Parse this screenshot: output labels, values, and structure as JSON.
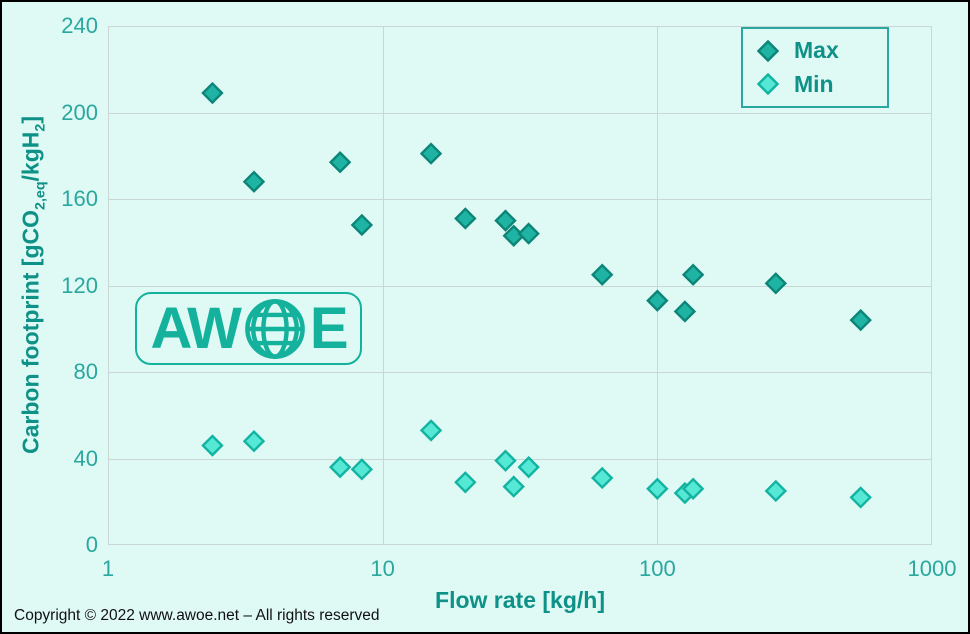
{
  "footer": {
    "copyright": "Copyright © 2022 www.awoe.net – All rights reserved"
  },
  "watermark": {
    "left": "AW",
    "right": "E",
    "icon": "globe-icon"
  },
  "colors": {
    "background": "#dff9f5",
    "gridline": "#c9d6d3",
    "tick_text": "#2aa79e",
    "title_text": "#0e9187",
    "legend_border": "#2aa79e",
    "logo_teal": "#14b29c",
    "max_fill": "#1fb3a4",
    "max_stroke": "#0b8578",
    "min_fill": "#55e8d5",
    "min_stroke": "#13b3a2"
  },
  "chart_data": {
    "type": "scatter",
    "title": "",
    "xlabel": "Flow rate [kg/h]",
    "ylabel_plain": "Carbon footprint [gCO2,eq/kgH2]",
    "ylabel_parts": [
      {
        "text": "Carbon footprint [gCO"
      },
      {
        "sub": "2,eq"
      },
      {
        "text": "/kgH"
      },
      {
        "sub": "2"
      },
      {
        "text": "]"
      }
    ],
    "x_scale": "log",
    "xlim": [
      1,
      1000
    ],
    "ylim": [
      0,
      240
    ],
    "x_ticks": [
      1,
      10,
      100,
      1000
    ],
    "y_ticks": [
      0,
      40,
      80,
      120,
      160,
      200,
      240
    ],
    "grid": true,
    "legend_position": "top-right-inside",
    "marker": "diamond",
    "x": [
      2.4,
      3.4,
      7,
      8.4,
      15,
      20,
      28,
      30,
      34,
      63,
      100,
      126,
      135,
      270,
      550
    ],
    "series": [
      {
        "name": "Max",
        "fill": "#1fb3a4",
        "stroke": "#0b8578",
        "values": [
          209,
          168,
          177,
          148,
          181,
          151,
          150,
          143,
          144,
          125,
          113,
          108,
          125,
          121,
          104
        ]
      },
      {
        "name": "Min",
        "fill": "#55e8d5",
        "stroke": "#13b3a2",
        "values": [
          46,
          48,
          36,
          35,
          53,
          29,
          39,
          27,
          36,
          31,
          26,
          24,
          26,
          25,
          22
        ]
      }
    ]
  }
}
